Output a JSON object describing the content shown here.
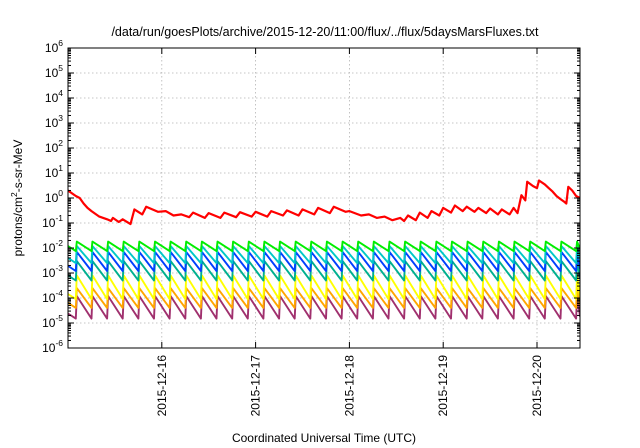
{
  "chart_data": {
    "type": "line",
    "title": "/data/run/goesPlots/archive/2015-12-20/11:00/flux/../flux/5daysMarsFluxes.txt",
    "xlabel": "Coordinated Universal Time (UTC)",
    "ylabel": {
      "base": "protons/cm",
      "exponent": "2",
      "rest": "-s-sr-MeV"
    },
    "y_scale": "log",
    "ylim": [
      1e-06,
      1000000.0
    ],
    "y_ticks": [
      {
        "base": "10",
        "exp": "-6"
      },
      {
        "base": "10",
        "exp": "-5"
      },
      {
        "base": "10",
        "exp": "-4"
      },
      {
        "base": "10",
        "exp": "-3"
      },
      {
        "base": "10",
        "exp": "-2"
      },
      {
        "base": "10",
        "exp": "-1"
      },
      {
        "base": "10",
        "exp": "0"
      },
      {
        "base": "10",
        "exp": "1"
      },
      {
        "base": "10",
        "exp": "2"
      },
      {
        "base": "10",
        "exp": "3"
      },
      {
        "base": "10",
        "exp": "4"
      },
      {
        "base": "10",
        "exp": "5"
      },
      {
        "base": "10",
        "exp": "6"
      }
    ],
    "xlim": [
      "2015-12-15T00:00",
      "2015-12-20T11:00"
    ],
    "x_ticks": [
      "2015-12-16",
      "2015-12-17",
      "2015-12-18",
      "2015-12-19",
      "2015-12-20"
    ],
    "grid": true,
    "series": [
      {
        "color": "#ff0000",
        "points": [
          [
            "2015-12-15T00:00",
            2.0
          ],
          [
            "2015-12-15T02:00",
            1.2
          ],
          [
            "2015-12-15T03:00",
            1.0
          ],
          [
            "2015-12-15T04:00",
            0.6
          ],
          [
            "2015-12-15T05:00",
            0.4
          ],
          [
            "2015-12-15T06:00",
            0.3
          ],
          [
            "2015-12-15T08:00",
            0.18
          ],
          [
            "2015-12-15T10:00",
            0.14
          ],
          [
            "2015-12-15T11:00",
            0.12
          ],
          [
            "2015-12-15T11:30",
            0.16
          ],
          [
            "2015-12-15T13:00",
            0.11
          ],
          [
            "2015-12-15T14:00",
            0.14
          ],
          [
            "2015-12-15T16:00",
            0.09
          ],
          [
            "2015-12-15T17:00",
            0.35
          ],
          [
            "2015-12-15T19:00",
            0.22
          ],
          [
            "2015-12-15T20:00",
            0.45
          ],
          [
            "2015-12-15T23:00",
            0.28
          ],
          [
            "2015-12-16T01:00",
            0.3
          ],
          [
            "2015-12-16T03:00",
            0.2
          ],
          [
            "2015-12-16T05:00",
            0.22
          ],
          [
            "2015-12-16T07:00",
            0.17
          ],
          [
            "2015-12-16T08:00",
            0.26
          ],
          [
            "2015-12-16T11:00",
            0.16
          ],
          [
            "2015-12-16T12:00",
            0.25
          ],
          [
            "2015-12-16T15:00",
            0.16
          ],
          [
            "2015-12-16T16:00",
            0.26
          ],
          [
            "2015-12-16T19:00",
            0.17
          ],
          [
            "2015-12-16T20:00",
            0.27
          ],
          [
            "2015-12-16T23:00",
            0.18
          ],
          [
            "2015-12-17T00:00",
            0.28
          ],
          [
            "2015-12-17T03:00",
            0.18
          ],
          [
            "2015-12-17T04:00",
            0.3
          ],
          [
            "2015-12-17T07:00",
            0.2
          ],
          [
            "2015-12-17T08:00",
            0.32
          ],
          [
            "2015-12-17T11:00",
            0.2
          ],
          [
            "2015-12-17T12:00",
            0.35
          ],
          [
            "2015-12-17T15:00",
            0.22
          ],
          [
            "2015-12-17T16:00",
            0.4
          ],
          [
            "2015-12-17T19:00",
            0.25
          ],
          [
            "2015-12-17T20:00",
            0.45
          ],
          [
            "2015-12-17T23:00",
            0.28
          ],
          [
            "2015-12-18T00:00",
            0.3
          ],
          [
            "2015-12-18T03:00",
            0.2
          ],
          [
            "2015-12-18T05:00",
            0.22
          ],
          [
            "2015-12-18T07:00",
            0.16
          ],
          [
            "2015-12-18T09:00",
            0.18
          ],
          [
            "2015-12-18T11:00",
            0.13
          ],
          [
            "2015-12-18T13:00",
            0.16
          ],
          [
            "2015-12-18T14:00",
            0.12
          ],
          [
            "2015-12-18T15:00",
            0.2
          ],
          [
            "2015-12-18T17:00",
            0.13
          ],
          [
            "2015-12-18T18:00",
            0.26
          ],
          [
            "2015-12-18T20:00",
            0.16
          ],
          [
            "2015-12-18T21:00",
            0.3
          ],
          [
            "2015-12-18T23:00",
            0.2
          ],
          [
            "2015-12-19T00:00",
            0.4
          ],
          [
            "2015-12-19T02:00",
            0.26
          ],
          [
            "2015-12-19T03:00",
            0.5
          ],
          [
            "2015-12-19T05:00",
            0.3
          ],
          [
            "2015-12-19T06:00",
            0.45
          ],
          [
            "2015-12-19T08:00",
            0.28
          ],
          [
            "2015-12-19T09:00",
            0.4
          ],
          [
            "2015-12-19T11:00",
            0.25
          ],
          [
            "2015-12-19T12:00",
            0.38
          ],
          [
            "2015-12-19T14:00",
            0.22
          ],
          [
            "2015-12-19T15:00",
            0.35
          ],
          [
            "2015-12-19T17:00",
            0.22
          ],
          [
            "2015-12-19T18:00",
            0.4
          ],
          [
            "2015-12-19T19:00",
            0.25
          ],
          [
            "2015-12-19T20:00",
            1.3
          ],
          [
            "2015-12-19T21:00",
            0.8
          ],
          [
            "2015-12-19T21:30",
            4.5
          ],
          [
            "2015-12-19T23:00",
            3.0
          ],
          [
            "2015-12-20T00:00",
            2.5
          ],
          [
            "2015-12-20T00:30",
            5.0
          ],
          [
            "2015-12-20T02:00",
            3.5
          ],
          [
            "2015-12-20T03:00",
            2.5
          ],
          [
            "2015-12-20T04:00",
            1.8
          ],
          [
            "2015-12-20T05:00",
            1.2
          ],
          [
            "2015-12-20T06:00",
            0.9
          ],
          [
            "2015-12-20T07:00",
            0.7
          ],
          [
            "2015-12-20T07:30",
            0.6
          ],
          [
            "2015-12-20T08:00",
            2.8
          ],
          [
            "2015-12-20T09:00",
            2.0
          ],
          [
            "2015-12-20T10:00",
            1.2
          ],
          [
            "2015-12-20T11:00",
            1.0
          ]
        ]
      },
      {
        "color": "#00ee00",
        "pattern": "sawtooth",
        "period_hours": 4,
        "phase_hours": 2,
        "low": 0.0075,
        "high": 0.018,
        "peaks": [
          [
            "2015-12-15T20:00",
            0.025
          ],
          [
            "2015-12-16T16:00",
            0.023
          ],
          [
            "2015-12-18T12:00",
            0.022
          ],
          [
            "2015-12-19T12:00",
            0.022
          ]
        ]
      },
      {
        "color": "#00c8c8",
        "pattern": "sawtooth",
        "period_hours": 4,
        "phase_hours": 2,
        "low": 0.0025,
        "high": 0.012
      },
      {
        "color": "#0040ff",
        "pattern": "sawtooth",
        "period_hours": 4,
        "phase_hours": 2,
        "low": 0.0012,
        "high": 0.007
      },
      {
        "color": "#00b090",
        "pattern": "sawtooth",
        "period_hours": 4,
        "phase_hours": 2,
        "low": 0.0005,
        "high": 0.003
      },
      {
        "color": "#ffff00",
        "pattern": "sawtooth",
        "period_hours": 4,
        "phase_hours": 2,
        "low": 9e-05,
        "high": 0.0008
      },
      {
        "color": "#ffa500",
        "pattern": "sawtooth",
        "period_hours": 4,
        "phase_hours": 2,
        "low": 4e-05,
        "high": 0.00025
      },
      {
        "color": "#a0306e",
        "pattern": "sawtooth",
        "period_hours": 4,
        "phase_hours": 2,
        "low": 1.5e-05,
        "high": 0.00012
      }
    ]
  }
}
